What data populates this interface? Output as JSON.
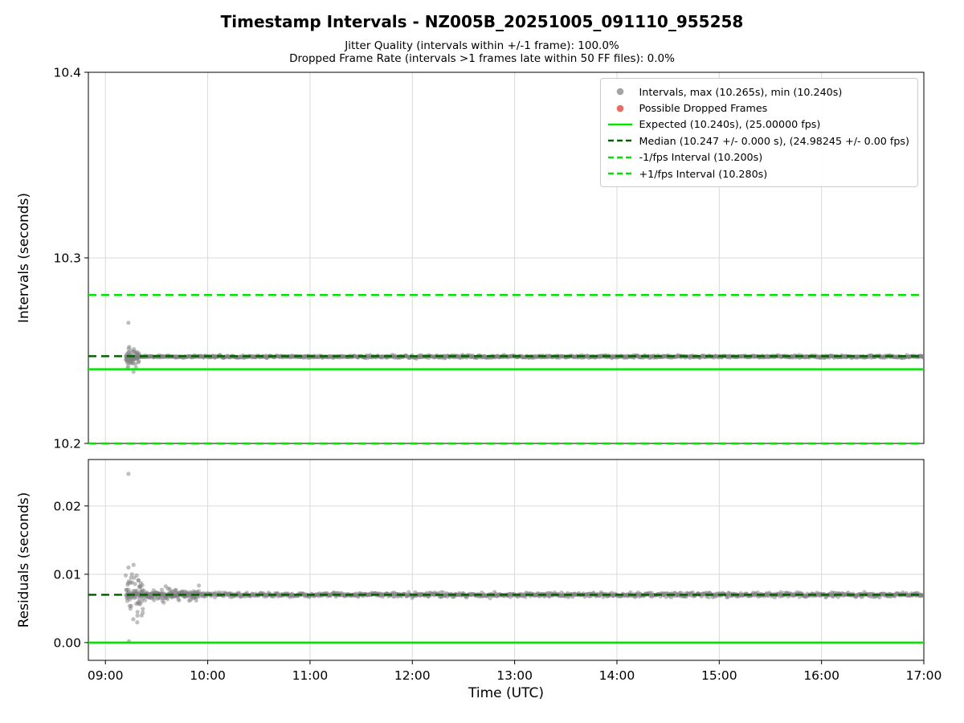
{
  "figure": {
    "title": "Timestamp Intervals - NZ005B_20251005_091110_955258",
    "subtitle1": "Jitter Quality (intervals within +/-1 frame): 100.0%",
    "subtitle2": "Dropped Frame Rate (intervals >1 frames late within 50 FF files): 0.0%",
    "xlabel": "Time (UTC)"
  },
  "legend": {
    "entries": [
      {
        "marker": "dot",
        "color": "#a3a3a3",
        "label": "Intervals, max (10.265s), min (10.240s)"
      },
      {
        "marker": "dot",
        "color": "#ec6a61",
        "label": "Possible Dropped Frames"
      },
      {
        "marker": "line-solid",
        "color": "#00e400",
        "label": "Expected (10.240s), (25.00000 fps)"
      },
      {
        "marker": "line-dashed",
        "color": "#006400",
        "label": "Median (10.247 +/- 0.000 s), (24.98245 +/- 0.00 fps)"
      },
      {
        "marker": "line-dashed",
        "color": "#00e400",
        "label": "-1/fps Interval (10.200s)"
      },
      {
        "marker": "line-dashed",
        "color": "#00e400",
        "label": "+1/fps Interval (10.280s)"
      }
    ]
  },
  "chart_data": [
    {
      "name": "intervals",
      "type": "scatter",
      "ylabel": "Intervals (seconds)",
      "ylim": [
        10.2,
        10.4
      ],
      "yticks": [
        10.2,
        10.3,
        10.4
      ],
      "ytick_labels": [
        "10.2",
        "10.3",
        "10.4"
      ],
      "x_axis": {
        "lim_minutes": [
          -10,
          480
        ],
        "tick_minutes": [
          0,
          60,
          120,
          180,
          240,
          300,
          360,
          420,
          480
        ],
        "labels": [
          "09:00",
          "10:00",
          "11:00",
          "12:00",
          "13:00",
          "14:00",
          "15:00",
          "16:00",
          "17:00"
        ],
        "show_labels": false
      },
      "grid": true,
      "ref_lines": [
        {
          "name": "expected",
          "value": 10.24,
          "style": "solid",
          "color": "#00e400"
        },
        {
          "name": "median",
          "value": 10.247,
          "style": "dashed",
          "color": "#006400"
        },
        {
          "name": "minus-1fps",
          "value": 10.2,
          "style": "dashed",
          "color": "#00e400"
        },
        {
          "name": "plus-1fps",
          "value": 10.28,
          "style": "dashed",
          "color": "#00e400"
        }
      ],
      "series": [
        {
          "name": "interval-points",
          "color": "#7f7f7f",
          "opacity": 0.5,
          "marker_radius": 2.6,
          "stats": {
            "max_s": 10.265,
            "min_s": 10.24,
            "median_s": 10.247,
            "expected_s": 10.24,
            "expected_fps": 25.0,
            "median_fps": 24.98245,
            "jitter_quality_pct": 100.0,
            "dropped_frame_rate_pct": 0.0
          },
          "generators": [
            {
              "t0": 12,
              "t1": 480,
              "center": 10.2468,
              "sigma": 0.0003,
              "count": 1200
            },
            {
              "t0": 12,
              "t1": 20,
              "center": 10.2462,
              "sigma": 0.0022,
              "count": 50
            }
          ],
          "outliers": [
            [
              13.5,
              10.265
            ],
            [
              13.0,
              10.2405
            ],
            [
              14.0,
              10.252
            ],
            [
              13.8,
              10.2435
            ]
          ]
        }
      ]
    },
    {
      "name": "residuals",
      "type": "scatter",
      "ylabel": "Residuals (seconds)",
      "ylim": [
        -0.0026,
        0.0268
      ],
      "yticks": [
        0.0,
        0.01,
        0.02
      ],
      "ytick_labels": [
        "0.00",
        "0.01",
        "0.02"
      ],
      "x_axis": {
        "lim_minutes": [
          -10,
          480
        ],
        "tick_minutes": [
          0,
          60,
          120,
          180,
          240,
          300,
          360,
          420,
          480
        ],
        "labels": [
          "09:00",
          "10:00",
          "11:00",
          "12:00",
          "13:00",
          "14:00",
          "15:00",
          "16:00",
          "17:00"
        ],
        "show_labels": true
      },
      "grid": true,
      "ref_lines": [
        {
          "name": "zero",
          "value": 0.0,
          "style": "solid",
          "color": "#00e400"
        },
        {
          "name": "median-residual",
          "value": 0.007,
          "style": "dashed",
          "color": "#006400"
        }
      ],
      "series": [
        {
          "name": "residual-points",
          "color": "#7f7f7f",
          "opacity": 0.5,
          "marker_radius": 2.6,
          "stats": {
            "median_residual_s": 0.007,
            "max_residual_s": 0.0247,
            "min_residual_s": 0.0
          },
          "generators": [
            {
              "t0": 12,
              "t1": 480,
              "center": 0.007,
              "sigma": 0.00015,
              "count": 1200
            },
            {
              "t0": 12,
              "t1": 22,
              "center": 0.007,
              "sigma": 0.0016,
              "count": 60
            },
            {
              "t0": 20,
              "t1": 55,
              "center": 0.007,
              "sigma": 0.0005,
              "count": 100
            }
          ],
          "outliers": [
            [
              13.5,
              0.0247
            ],
            [
              13.5,
              0.011
            ],
            [
              13.8,
              0.0002
            ],
            [
              15.0,
              0.0095
            ]
          ]
        }
      ]
    }
  ]
}
